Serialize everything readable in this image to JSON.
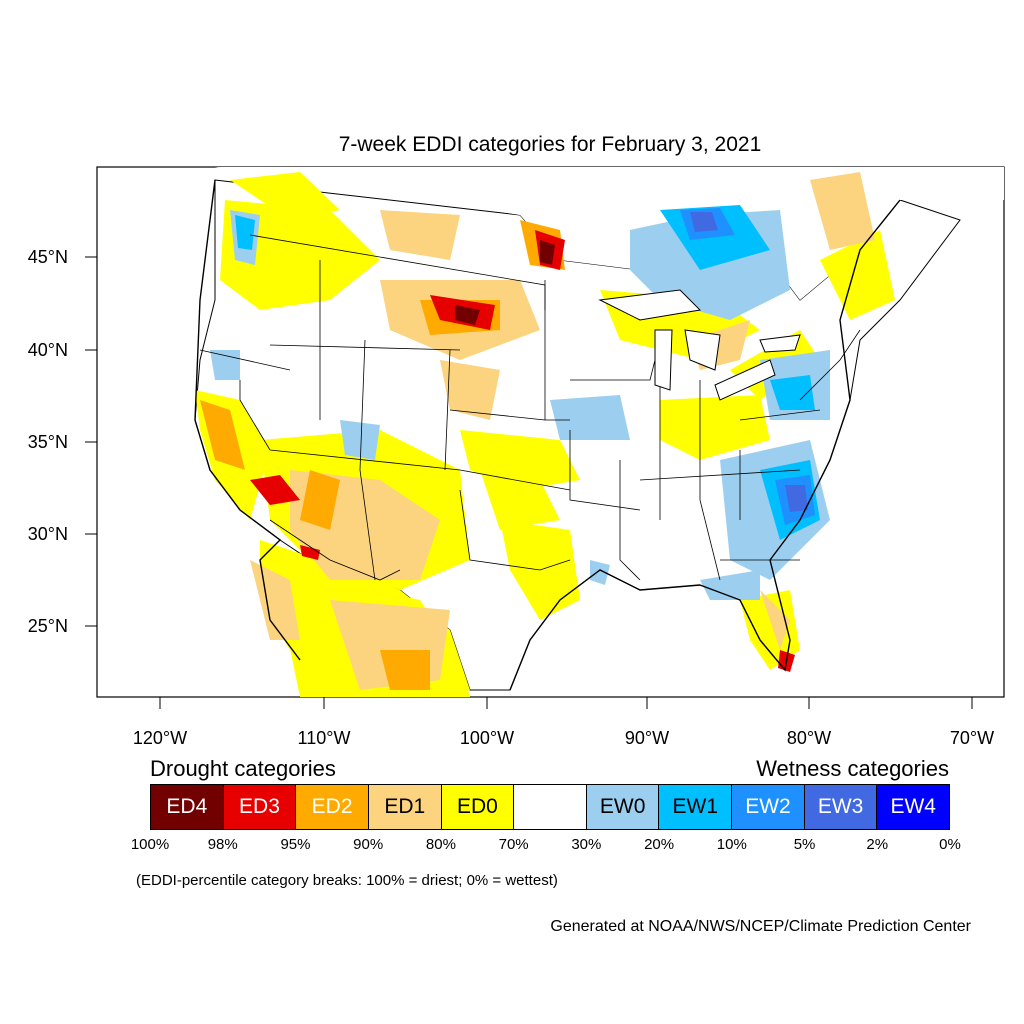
{
  "title": "7-week EDDI categories for February 3, 2021",
  "lat_labels": [
    "45°N",
    "40°N",
    "35°N",
    "30°N",
    "25°N"
  ],
  "lon_labels": [
    "120°W",
    "110°W",
    "100°W",
    "90°W",
    "80°W",
    "70°W"
  ],
  "drought_heading": "Drought categories",
  "wetness_heading": "Wetness categories",
  "legend": [
    {
      "label": "ED4",
      "color": "#730000",
      "text_color": "#ffffff"
    },
    {
      "label": "ED3",
      "color": "#e60000",
      "text_color": "#ffffff"
    },
    {
      "label": "ED2",
      "color": "#ffaa00",
      "text_color": "#ffffff"
    },
    {
      "label": "ED1",
      "color": "#fcd37f",
      "text_color": "#000000"
    },
    {
      "label": "ED0",
      "color": "#ffff00",
      "text_color": "#000000"
    },
    {
      "label": "",
      "color": "#ffffff",
      "text_color": "#000000"
    },
    {
      "label": "EW0",
      "color": "#9ccfef",
      "text_color": "#000000"
    },
    {
      "label": "EW1",
      "color": "#00bfff",
      "text_color": "#000000"
    },
    {
      "label": "EW2",
      "color": "#1e90ff",
      "text_color": "#ffffff"
    },
    {
      "label": "EW3",
      "color": "#4169e1",
      "text_color": "#ffffff"
    },
    {
      "label": "EW4",
      "color": "#0000ff",
      "text_color": "#ffffff"
    }
  ],
  "percentiles": [
    "100%",
    "98%",
    "95%",
    "90%",
    "80%",
    "70%",
    "30%",
    "20%",
    "10%",
    "5%",
    "2%",
    "0%"
  ],
  "note": "(EDDI-percentile category breaks: 100% = driest; 0% = wettest)",
  "credit": "Generated at NOAA/NWS/NCEP/Climate Prediction Center"
}
